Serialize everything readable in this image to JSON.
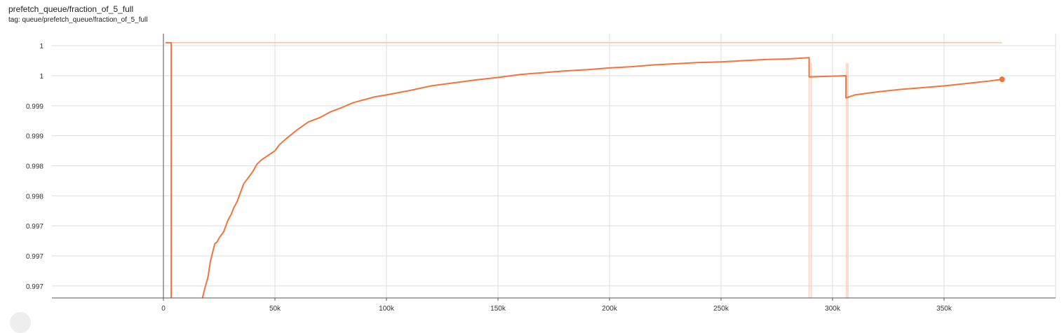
{
  "header": {
    "title": "prefetch_queue/fraction_of_5_full",
    "tag": "tag: queue/prefetch_queue/fraction_of_5_full"
  },
  "colors": {
    "smoothed": "#f4733a",
    "raw": "#f9c2a8",
    "grid": "#dddddd",
    "axis": "#555555",
    "zero_line": "#888888"
  },
  "chart_data": {
    "type": "line",
    "title": "prefetch_queue/fraction_of_5_full",
    "xlabel": "",
    "ylabel": "",
    "xlim": [
      -50000,
      400000
    ],
    "ylim": [
      0.99655,
      1.00095
    ],
    "grid": true,
    "x_ticks": [
      0,
      50000,
      100000,
      150000,
      200000,
      250000,
      300000,
      350000
    ],
    "x_tick_labels": [
      "0",
      "50k",
      "100k",
      "150k",
      "200k",
      "250k",
      "300k",
      "350k"
    ],
    "y_ticks": [
      0.99675,
      0.99725,
      0.99775,
      0.99825,
      0.99875,
      0.99925,
      0.99975,
      1.00025,
      1.00075
    ],
    "y_tick_labels": [
      "0.997",
      "0.997",
      "0.997",
      "0.998",
      "0.998",
      "0.999",
      "0.999",
      "1",
      "1"
    ],
    "series": [
      {
        "name": "",
        "role": "raw",
        "x": [
          1000,
          376000
        ],
        "y": [
          1.0008,
          1.0008
        ],
        "spikes_x": [
          289500,
          290500,
          306200,
          306900
        ]
      },
      {
        "name": "",
        "role": "smoothed",
        "x": [
          1000,
          3500,
          3500,
          3500,
          17500,
          18500,
          20000,
          21000,
          22000,
          23000,
          24000,
          25000,
          27000,
          29000,
          30500,
          31500,
          33000,
          35000,
          36000,
          38000,
          40000,
          42000,
          44000,
          46000,
          48000,
          50000,
          52000,
          55000,
          60000,
          65000,
          70000,
          75000,
          80000,
          85000,
          90000,
          95000,
          100000,
          110000,
          120000,
          130000,
          140000,
          150000,
          160000,
          170000,
          180000,
          190000,
          200000,
          210000,
          220000,
          230000,
          240000,
          250000,
          260000,
          270000,
          280000,
          289500,
          289500,
          306000,
          306000,
          310000,
          320000,
          330000,
          340000,
          350000,
          360000,
          370000,
          376000
        ],
        "y": [
          1.0008,
          1.0008,
          0.9978,
          0.9963,
          0.99655,
          0.9967,
          0.9969,
          0.99715,
          0.9973,
          0.99745,
          0.99748,
          0.99755,
          0.99765,
          0.99785,
          0.99795,
          0.99805,
          0.99815,
          0.99835,
          0.99845,
          0.99855,
          0.99865,
          0.99878,
          0.99885,
          0.9989,
          0.99895,
          0.999,
          0.9991,
          0.9992,
          0.99935,
          0.99948,
          0.99955,
          0.99965,
          0.99972,
          0.9998,
          0.99985,
          0.9999,
          0.99993,
          1.0,
          1.00008,
          1.00013,
          1.00018,
          1.00022,
          1.00027,
          1.0003,
          1.00033,
          1.00035,
          1.00038,
          1.0004,
          1.00043,
          1.00045,
          1.00047,
          1.00048,
          1.0005,
          1.00052,
          1.00053,
          1.00055,
          1.00023,
          1.00025,
          0.99988,
          0.99993,
          0.99998,
          1.00002,
          1.00005,
          1.00008,
          1.00012,
          1.00016,
          1.00019
        ]
      }
    ]
  }
}
